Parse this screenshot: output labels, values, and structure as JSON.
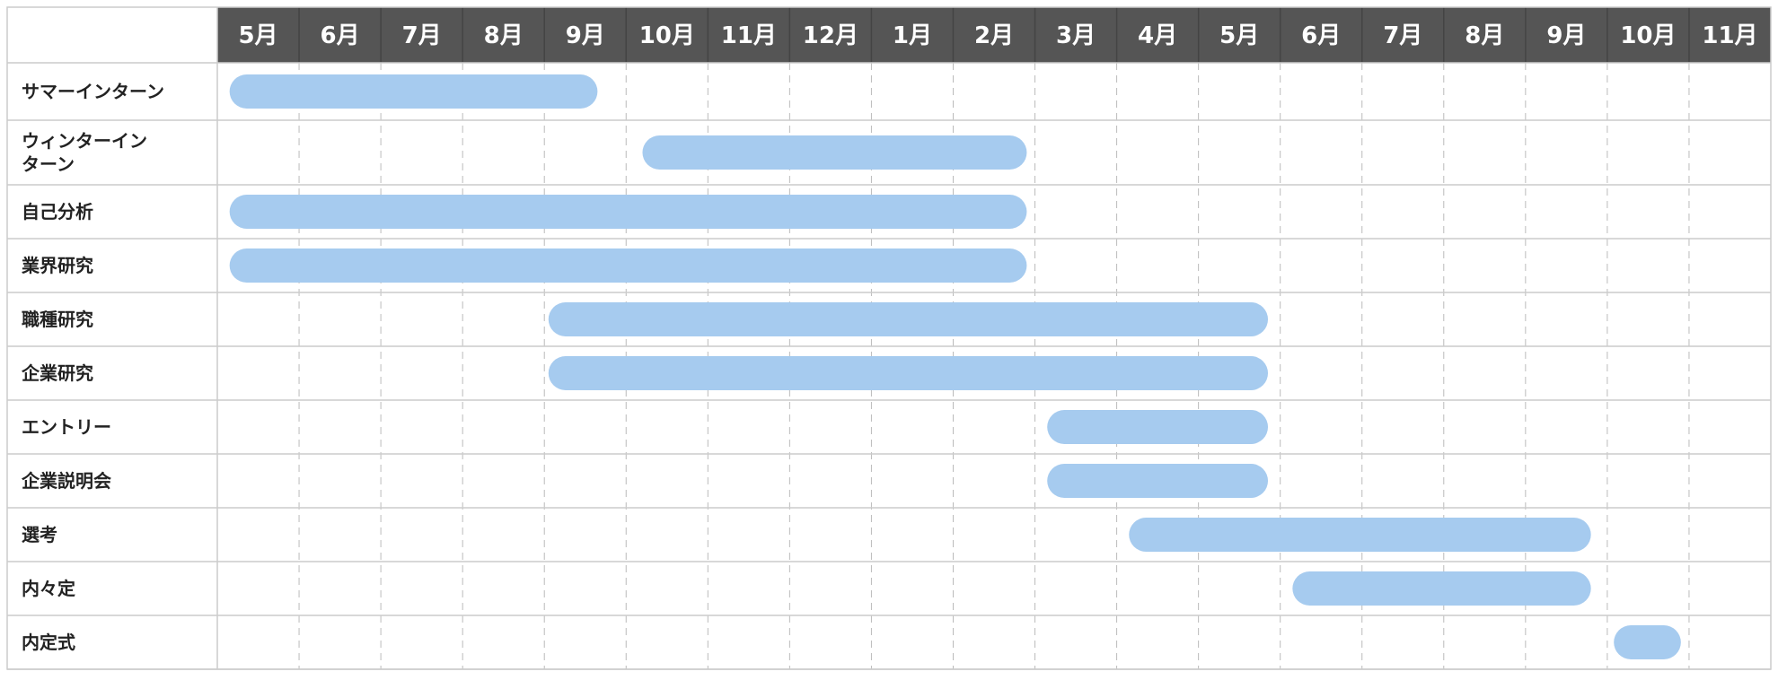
{
  "chart_data": {
    "type": "gantt",
    "title": "",
    "months": [
      "5月",
      "6月",
      "7月",
      "8月",
      "9月",
      "10月",
      "11月",
      "12月",
      "1月",
      "2月",
      "3月",
      "4月",
      "5月",
      "6月",
      "7月",
      "8月",
      "9月",
      "10月",
      "11月"
    ],
    "tasks": [
      {
        "name": "サマーインターン",
        "name_lines": [
          "サマーインターン"
        ],
        "start": 0.15,
        "end": 4.65
      },
      {
        "name": "ウィンターインターン",
        "name_lines": [
          "ウィンターイン",
          "ターン"
        ],
        "start": 5.2,
        "end": 9.9
      },
      {
        "name": "自己分析",
        "name_lines": [
          "自己分析"
        ],
        "start": 0.15,
        "end": 9.9
      },
      {
        "name": "業界研究",
        "name_lines": [
          "業界研究"
        ],
        "start": 0.15,
        "end": 9.9
      },
      {
        "name": "職種研究",
        "name_lines": [
          "職種研究"
        ],
        "start": 4.05,
        "end": 12.85
      },
      {
        "name": "企業研究",
        "name_lines": [
          "企業研究"
        ],
        "start": 4.05,
        "end": 12.85
      },
      {
        "name": "エントリー",
        "name_lines": [
          "エントリー"
        ],
        "start": 10.15,
        "end": 12.85
      },
      {
        "name": "企業説明会",
        "name_lines": [
          "企業説明会"
        ],
        "start": 10.15,
        "end": 12.85
      },
      {
        "name": "選考",
        "name_lines": [
          "選考"
        ],
        "start": 11.15,
        "end": 16.8
      },
      {
        "name": "内々定",
        "name_lines": [
          "内々定"
        ],
        "start": 13.15,
        "end": 16.8
      },
      {
        "name": "内定式",
        "name_lines": [
          "内定式"
        ],
        "start": 17.08,
        "end": 17.9
      }
    ],
    "colors": {
      "header_bg": "#555555",
      "header_text": "#ffffff",
      "bar": "#a6cbef",
      "grid_solid": "#cccccc",
      "grid_dashed": "#bbbbbb",
      "label_text": "#222222"
    }
  }
}
